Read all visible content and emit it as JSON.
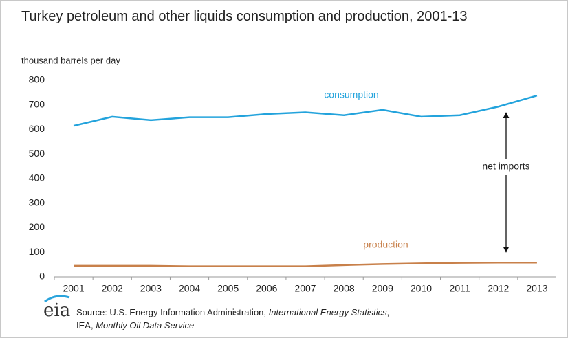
{
  "chart_data": {
    "type": "line",
    "title": "Turkey petroleum and other liquids consumption and production, 2001-13",
    "y_label": "thousand barrels per day",
    "categories": [
      "2001",
      "2002",
      "2003",
      "2004",
      "2005",
      "2006",
      "2007",
      "2008",
      "2009",
      "2010",
      "2011",
      "2012",
      "2013"
    ],
    "series": [
      {
        "name": "consumption",
        "color": "#23a3dc",
        "values": [
          615,
          652,
          638,
          650,
          650,
          663,
          670,
          658,
          680,
          652,
          658,
          693,
          738
        ]
      },
      {
        "name": "production",
        "color": "#c8804a",
        "values": [
          45,
          45,
          45,
          43,
          43,
          43,
          43,
          48,
          52,
          55,
          57,
          58,
          58
        ]
      }
    ],
    "annotations": [
      "net imports"
    ],
    "ylim": [
      0,
      800
    ],
    "yticks": [
      0,
      100,
      200,
      300,
      400,
      500,
      600,
      700,
      800
    ],
    "grid": false,
    "logo": "eia",
    "source": [
      "Source: U.S. Energy Information Administration, ",
      "International Energy Statistics",
      ",",
      "IEA, ",
      "Monthly Oil Data Service"
    ]
  }
}
